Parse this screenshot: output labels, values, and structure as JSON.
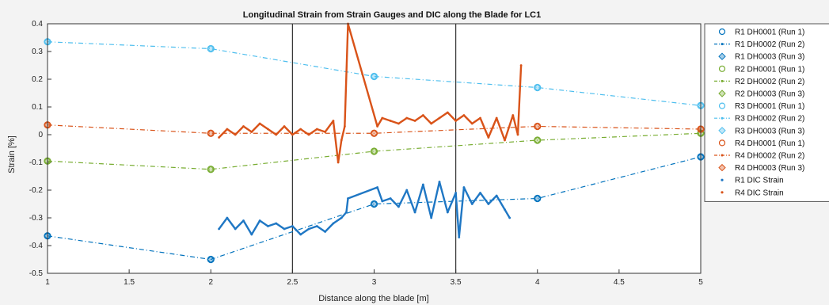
{
  "chart_data": {
    "type": "line",
    "title": "Longitudinal Strain from Strain Gauges and DIC along the Blade for LC1",
    "xlabel": "Distance along the blade [m]",
    "ylabel": "Strain [%]",
    "xlim": [
      1,
      5
    ],
    "ylim": [
      -0.5,
      0.4
    ],
    "xticks": [
      "1",
      "1.5",
      "2",
      "2.5",
      "3",
      "3.5",
      "4",
      "4.5",
      "5"
    ],
    "yticks": [
      "0.4",
      "0.3",
      "0.2",
      "0.1",
      "0",
      "-0.1",
      "-0.2",
      "-0.3",
      "-0.4",
      "-0.5"
    ],
    "grid": false,
    "legend_position": "right",
    "vlines": [
      2.5,
      3.5
    ],
    "series": [
      {
        "name": "R1 DH0001 (Run 1)",
        "color": "#0072bd",
        "marker": "circle",
        "line": "none",
        "x": [
          1,
          2,
          3,
          4,
          5
        ],
        "y": [
          -0.365,
          -0.45,
          -0.25,
          -0.23,
          -0.08
        ]
      },
      {
        "name": "R1 DH0002 (Run 2)",
        "color": "#0072bd",
        "marker": "none",
        "line": "dashdot",
        "x": [
          1,
          2,
          3,
          4,
          5
        ],
        "y": [
          -0.365,
          -0.45,
          -0.25,
          -0.23,
          -0.08
        ]
      },
      {
        "name": "R1 DH0003 (Run 3)",
        "color": "#0072bd",
        "marker": "diamond",
        "line": "none",
        "x": [
          1,
          2,
          3,
          4,
          5
        ],
        "y": [
          -0.365,
          -0.45,
          -0.25,
          -0.23,
          -0.08
        ]
      },
      {
        "name": "R2 DH0001 (Run 1)",
        "color": "#77ac30",
        "marker": "circle",
        "line": "none",
        "x": [
          1,
          2,
          3,
          4,
          5
        ],
        "y": [
          -0.095,
          -0.125,
          -0.06,
          -0.02,
          0.005
        ]
      },
      {
        "name": "R2 DH0002 (Run 2)",
        "color": "#77ac30",
        "marker": "none",
        "line": "dashdot",
        "x": [
          1,
          2,
          3,
          4,
          5
        ],
        "y": [
          -0.095,
          -0.125,
          -0.06,
          -0.02,
          0.005
        ]
      },
      {
        "name": "R2 DH0003 (Run 3)",
        "color": "#77ac30",
        "marker": "diamond",
        "line": "none",
        "x": [
          1,
          2,
          3,
          4,
          5
        ],
        "y": [
          -0.095,
          -0.125,
          -0.06,
          -0.02,
          0.005
        ]
      },
      {
        "name": "R3 DH0001 (Run 1)",
        "color": "#4dbeee",
        "marker": "circle",
        "line": "none",
        "x": [
          1,
          2,
          3,
          4,
          5
        ],
        "y": [
          0.335,
          0.31,
          0.21,
          0.17,
          0.105
        ]
      },
      {
        "name": "R3 DH0002 (Run 2)",
        "color": "#4dbeee",
        "marker": "none",
        "line": "dashdot",
        "x": [
          1,
          2,
          3,
          4,
          5
        ],
        "y": [
          0.335,
          0.31,
          0.21,
          0.17,
          0.105
        ]
      },
      {
        "name": "R3 DH0003 (Run 3)",
        "color": "#4dbeee",
        "marker": "diamond",
        "line": "none",
        "x": [
          1,
          2,
          3,
          4,
          5
        ],
        "y": [
          0.335,
          0.31,
          0.21,
          0.17,
          0.105
        ]
      },
      {
        "name": "R4 DH0001 (Run 1)",
        "color": "#d95319",
        "marker": "circle",
        "line": "none",
        "x": [
          1,
          2,
          3,
          4,
          5
        ],
        "y": [
          0.035,
          0.005,
          0.005,
          0.03,
          0.02
        ]
      },
      {
        "name": "R4 DH0002 (Run 2)",
        "color": "#d95319",
        "marker": "none",
        "line": "dashdot",
        "x": [
          1,
          2,
          3,
          4,
          5
        ],
        "y": [
          0.035,
          0.005,
          0.005,
          0.03,
          0.02
        ]
      },
      {
        "name": "R4 DH0003 (Run 3)",
        "color": "#d95319",
        "marker": "diamond",
        "line": "none",
        "x": [
          1,
          2,
          3,
          4,
          5
        ],
        "y": [
          0.035,
          0.005,
          0.005,
          0.03,
          0.02
        ]
      },
      {
        "name": "R1 DIC Strain",
        "color": "#1f77c4",
        "marker": "dot",
        "line": "dense-points",
        "x": [
          2.05,
          2.1,
          2.15,
          2.2,
          2.25,
          2.3,
          2.35,
          2.4,
          2.45,
          2.5,
          2.55,
          2.6,
          2.65,
          2.7,
          2.75,
          2.8,
          2.83,
          2.84,
          3.02,
          3.05,
          3.1,
          3.15,
          3.2,
          3.25,
          3.3,
          3.35,
          3.4,
          3.45,
          3.5,
          3.52,
          3.55,
          3.6,
          3.65,
          3.7,
          3.75,
          3.8,
          3.83
        ],
        "y": [
          -0.34,
          -0.3,
          -0.34,
          -0.31,
          -0.36,
          -0.31,
          -0.33,
          -0.32,
          -0.34,
          -0.33,
          -0.36,
          -0.34,
          -0.33,
          -0.35,
          -0.32,
          -0.3,
          -0.28,
          -0.23,
          -0.19,
          -0.24,
          -0.23,
          -0.26,
          -0.2,
          -0.28,
          -0.18,
          -0.3,
          -0.17,
          -0.28,
          -0.21,
          -0.37,
          -0.19,
          -0.25,
          -0.21,
          -0.25,
          -0.22,
          -0.27,
          -0.3
        ]
      },
      {
        "name": "R4 DIC Strain",
        "color": "#d95319",
        "marker": "dot",
        "line": "dense-points",
        "x": [
          2.05,
          2.1,
          2.15,
          2.2,
          2.25,
          2.3,
          2.35,
          2.4,
          2.45,
          2.5,
          2.55,
          2.6,
          2.65,
          2.7,
          2.75,
          2.78,
          2.8,
          2.82,
          2.84,
          3.02,
          3.05,
          3.1,
          3.15,
          3.2,
          3.25,
          3.3,
          3.35,
          3.4,
          3.45,
          3.5,
          3.55,
          3.6,
          3.65,
          3.7,
          3.75,
          3.8,
          3.85,
          3.88,
          3.9
        ],
        "y": [
          -0.01,
          0.02,
          0.0,
          0.03,
          0.01,
          0.04,
          0.02,
          0.0,
          0.03,
          0.0,
          0.02,
          0.0,
          0.02,
          0.01,
          0.05,
          -0.1,
          -0.02,
          0.03,
          0.4,
          0.03,
          0.06,
          0.05,
          0.04,
          0.06,
          0.05,
          0.07,
          0.04,
          0.06,
          0.08,
          0.05,
          0.07,
          0.04,
          0.06,
          -0.01,
          0.06,
          -0.02,
          0.07,
          0.0,
          0.25
        ]
      }
    ]
  }
}
